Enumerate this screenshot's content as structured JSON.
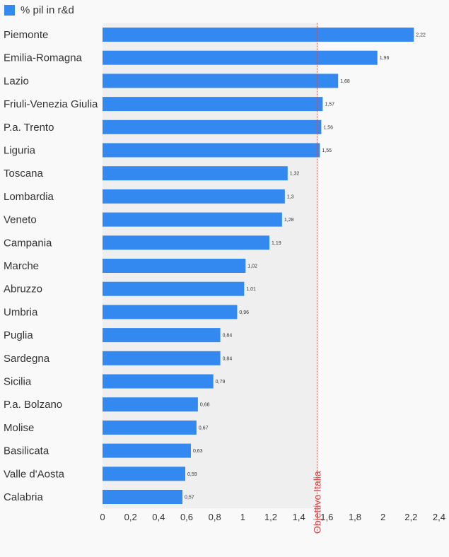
{
  "legend": {
    "label": "% pil in r&d",
    "color": "#3389f0"
  },
  "chart_data": {
    "type": "bar",
    "orientation": "horizontal",
    "categories": [
      "Piemonte",
      "Emilia-Romagna",
      "Lazio",
      "Friuli-Venezia Giulia",
      "P.a. Trento",
      "Liguria",
      "Toscana",
      "Lombardia",
      "Veneto",
      "Campania",
      "Marche",
      "Abruzzo",
      "Umbria",
      "Puglia",
      "Sardegna",
      "Sicilia",
      "P.a. Bolzano",
      "Molise",
      "Basilicata",
      "Valle d'Aosta",
      "Calabria"
    ],
    "series": [
      {
        "name": "% pil in r&d",
        "values": [
          2.22,
          1.96,
          1.68,
          1.57,
          1.56,
          1.55,
          1.32,
          1.3,
          1.28,
          1.19,
          1.02,
          1.01,
          0.96,
          0.84,
          0.84,
          0.79,
          0.68,
          0.67,
          0.63,
          0.59,
          0.57
        ],
        "value_labels": [
          "2,22",
          "1,96",
          "1,68",
          "1,57",
          "1,56",
          "1,55",
          "1,32",
          "1,3",
          "1,28",
          "1,19",
          "1,02",
          "1,01",
          "0,96",
          "0,84",
          "0,84",
          "0,79",
          "0,68",
          "0,67",
          "0,63",
          "0,59",
          "0,57"
        ]
      }
    ],
    "xlim": [
      0,
      2.4
    ],
    "xticks": [
      0,
      0.2,
      0.4,
      0.6,
      0.8,
      1,
      1.2,
      1.4,
      1.6,
      1.8,
      2,
      2.2,
      2.4
    ],
    "xtick_labels": [
      "0",
      "0,2",
      "0,4",
      "0,6",
      "0,8",
      "1",
      "1,2",
      "1,4",
      "1,6",
      "1,8",
      "2",
      "2,2",
      "2,4"
    ],
    "target_line": {
      "value": 1.53,
      "label": "Objettivo Italia",
      "color": "#d64545"
    },
    "shaded_region": [
      0,
      1.53
    ],
    "grid": false,
    "legend_position": "top-left",
    "bar_color": "#3389f0"
  }
}
